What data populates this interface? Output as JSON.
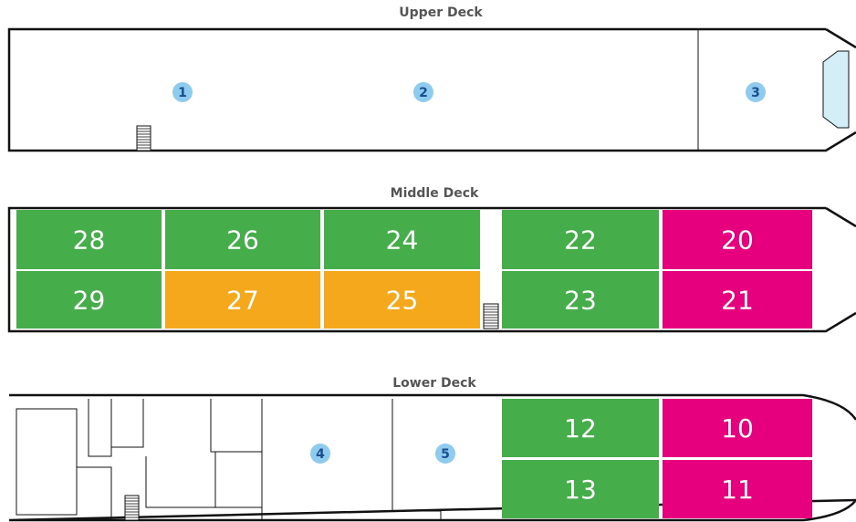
{
  "decks": [
    {
      "title": "Upper Deck",
      "areas": [
        "1",
        "2",
        "3"
      ]
    },
    {
      "title": "Middle Deck",
      "cabins": [
        {
          "label": "28",
          "color": "#45ad49"
        },
        {
          "label": "26",
          "color": "#45ad49"
        },
        {
          "label": "24",
          "color": "#45ad49"
        },
        {
          "label": "22",
          "color": "#45ad49"
        },
        {
          "label": "20",
          "color": "#e6007e"
        },
        {
          "label": "29",
          "color": "#45ad49"
        },
        {
          "label": "27",
          "color": "#f6a81d"
        },
        {
          "label": "25",
          "color": "#f6a81d"
        },
        {
          "label": "23",
          "color": "#45ad49"
        },
        {
          "label": "21",
          "color": "#e6007e"
        }
      ]
    },
    {
      "title": "Lower Deck",
      "areas": [
        "4",
        "5"
      ],
      "cabins": [
        {
          "label": "12",
          "color": "#45ad49"
        },
        {
          "label": "10",
          "color": "#e6007e"
        },
        {
          "label": "13",
          "color": "#45ad49"
        },
        {
          "label": "11",
          "color": "#e6007e"
        }
      ]
    }
  ]
}
